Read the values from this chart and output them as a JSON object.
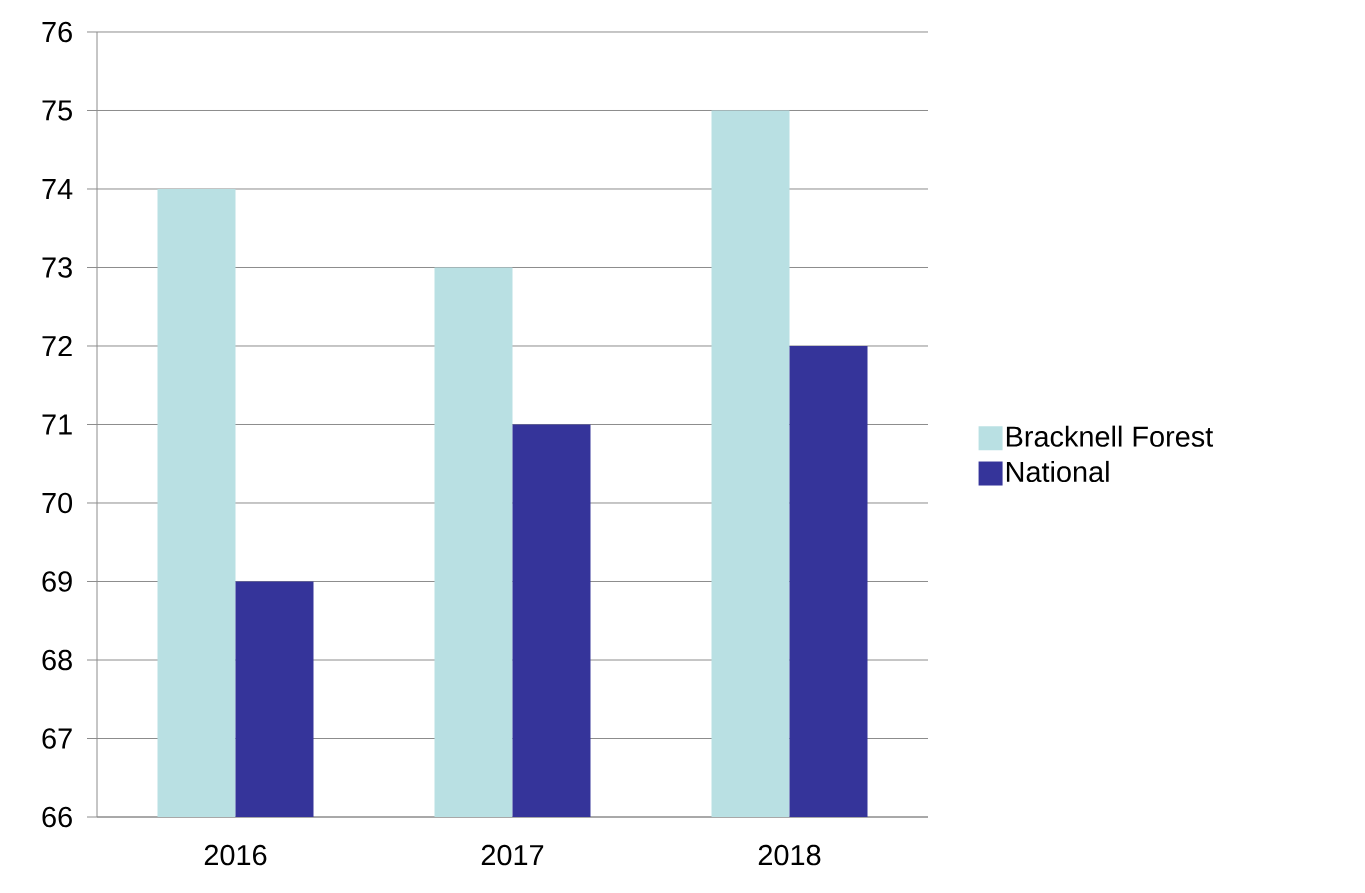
{
  "chart_data": {
    "type": "bar",
    "categories": [
      "2016",
      "2017",
      "2018"
    ],
    "series": [
      {
        "name": "Bracknell Forest",
        "color": "#b9e0e3",
        "values": [
          74,
          73,
          75
        ]
      },
      {
        "name": "National",
        "color": "#35349a",
        "values": [
          69,
          71,
          72
        ]
      }
    ],
    "ylim": [
      66,
      76
    ],
    "yticks": [
      66,
      67,
      68,
      69,
      70,
      71,
      72,
      73,
      74,
      75,
      76
    ],
    "grid": "y",
    "legend": "right"
  }
}
